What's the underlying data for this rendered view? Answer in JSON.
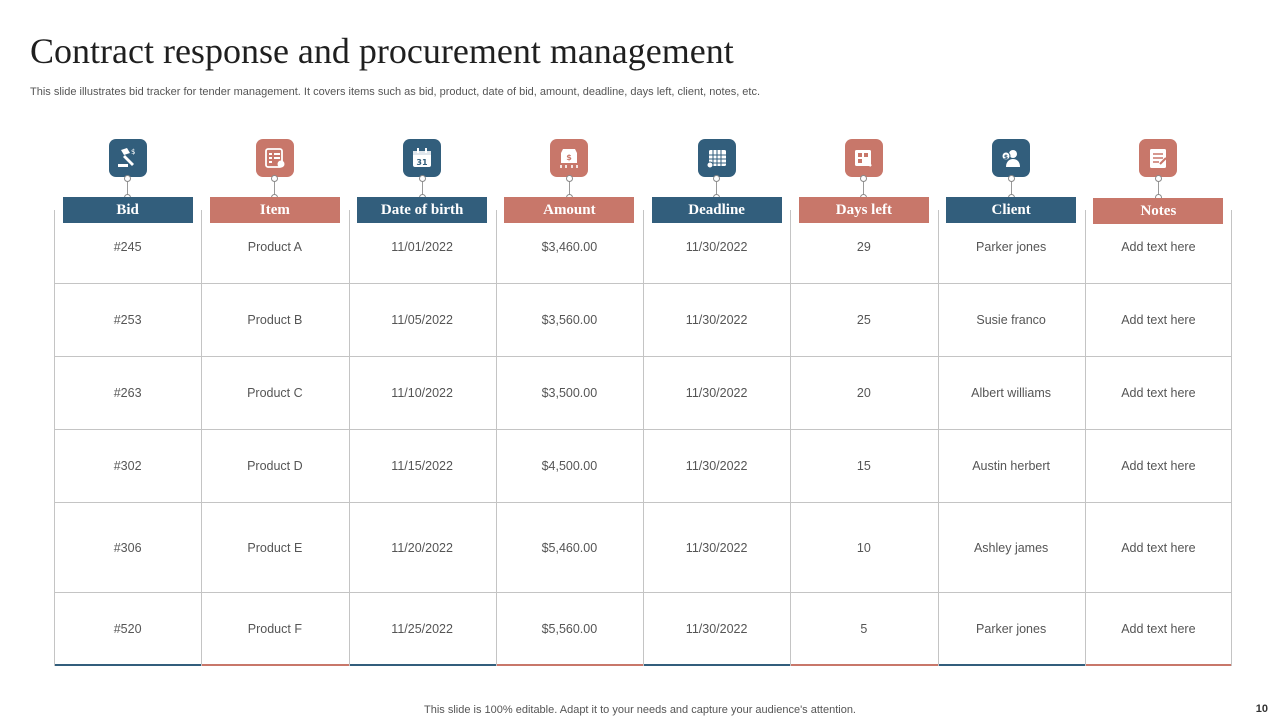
{
  "title": "Contract response and procurement management",
  "subtitle": "This slide illustrates bid tracker for tender management. It covers items such as bid, product, date of bid, amount, deadline, days left, client, notes, etc.",
  "colors": {
    "blue": "#325e7c",
    "coral": "#c8776a",
    "grid": "#c4c4c4"
  },
  "columns": [
    {
      "label": "Bid",
      "icon": "auction-gavel-icon",
      "color": "#325e7c"
    },
    {
      "label": "Item",
      "icon": "item-list-icon",
      "color": "#c8776a"
    },
    {
      "label": "Date of birth",
      "icon": "calendar-icon",
      "color": "#325e7c"
    },
    {
      "label": "Amount",
      "icon": "money-amount-icon",
      "color": "#c8776a"
    },
    {
      "label": "Deadline",
      "icon": "deadline-calendar-icon",
      "color": "#325e7c"
    },
    {
      "label": "Days left",
      "icon": "days-left-icon",
      "color": "#c8776a"
    },
    {
      "label": "Client",
      "icon": "client-icon",
      "color": "#325e7c"
    },
    {
      "label": "Notes",
      "icon": "notes-icon",
      "color": "#c8776a"
    }
  ],
  "rows": [
    [
      "#245",
      "Product A",
      "11/01/2022",
      "$3,460.00",
      "11/30/2022",
      "29",
      "Parker jones",
      "Add text here"
    ],
    [
      "#253",
      "Product B",
      "11/05/2022",
      "$3,560.00",
      "11/30/2022",
      "25",
      "Susie franco",
      "Add text here"
    ],
    [
      "#263",
      "Product C",
      "11/10/2022",
      "$3,500.00",
      "11/30/2022",
      "20",
      "Albert williams",
      "Add text here"
    ],
    [
      "#302",
      "Product D",
      "11/15/2022",
      "$4,500.00",
      "11/30/2022",
      "15",
      "Austin herbert",
      "Add text here"
    ],
    [
      "#306",
      "Product E",
      "11/20/2022",
      "$5,460.00",
      "11/30/2022",
      "10",
      "Ashley james",
      "Add text here"
    ],
    [
      "#520",
      "Product F",
      "11/25/2022",
      "$5,560.00",
      "11/30/2022",
      "5",
      "Parker jones",
      "Add text here"
    ]
  ],
  "footer": "This slide is 100% editable. Adapt it to your needs and capture your audience's attention.",
  "page_number": "10"
}
